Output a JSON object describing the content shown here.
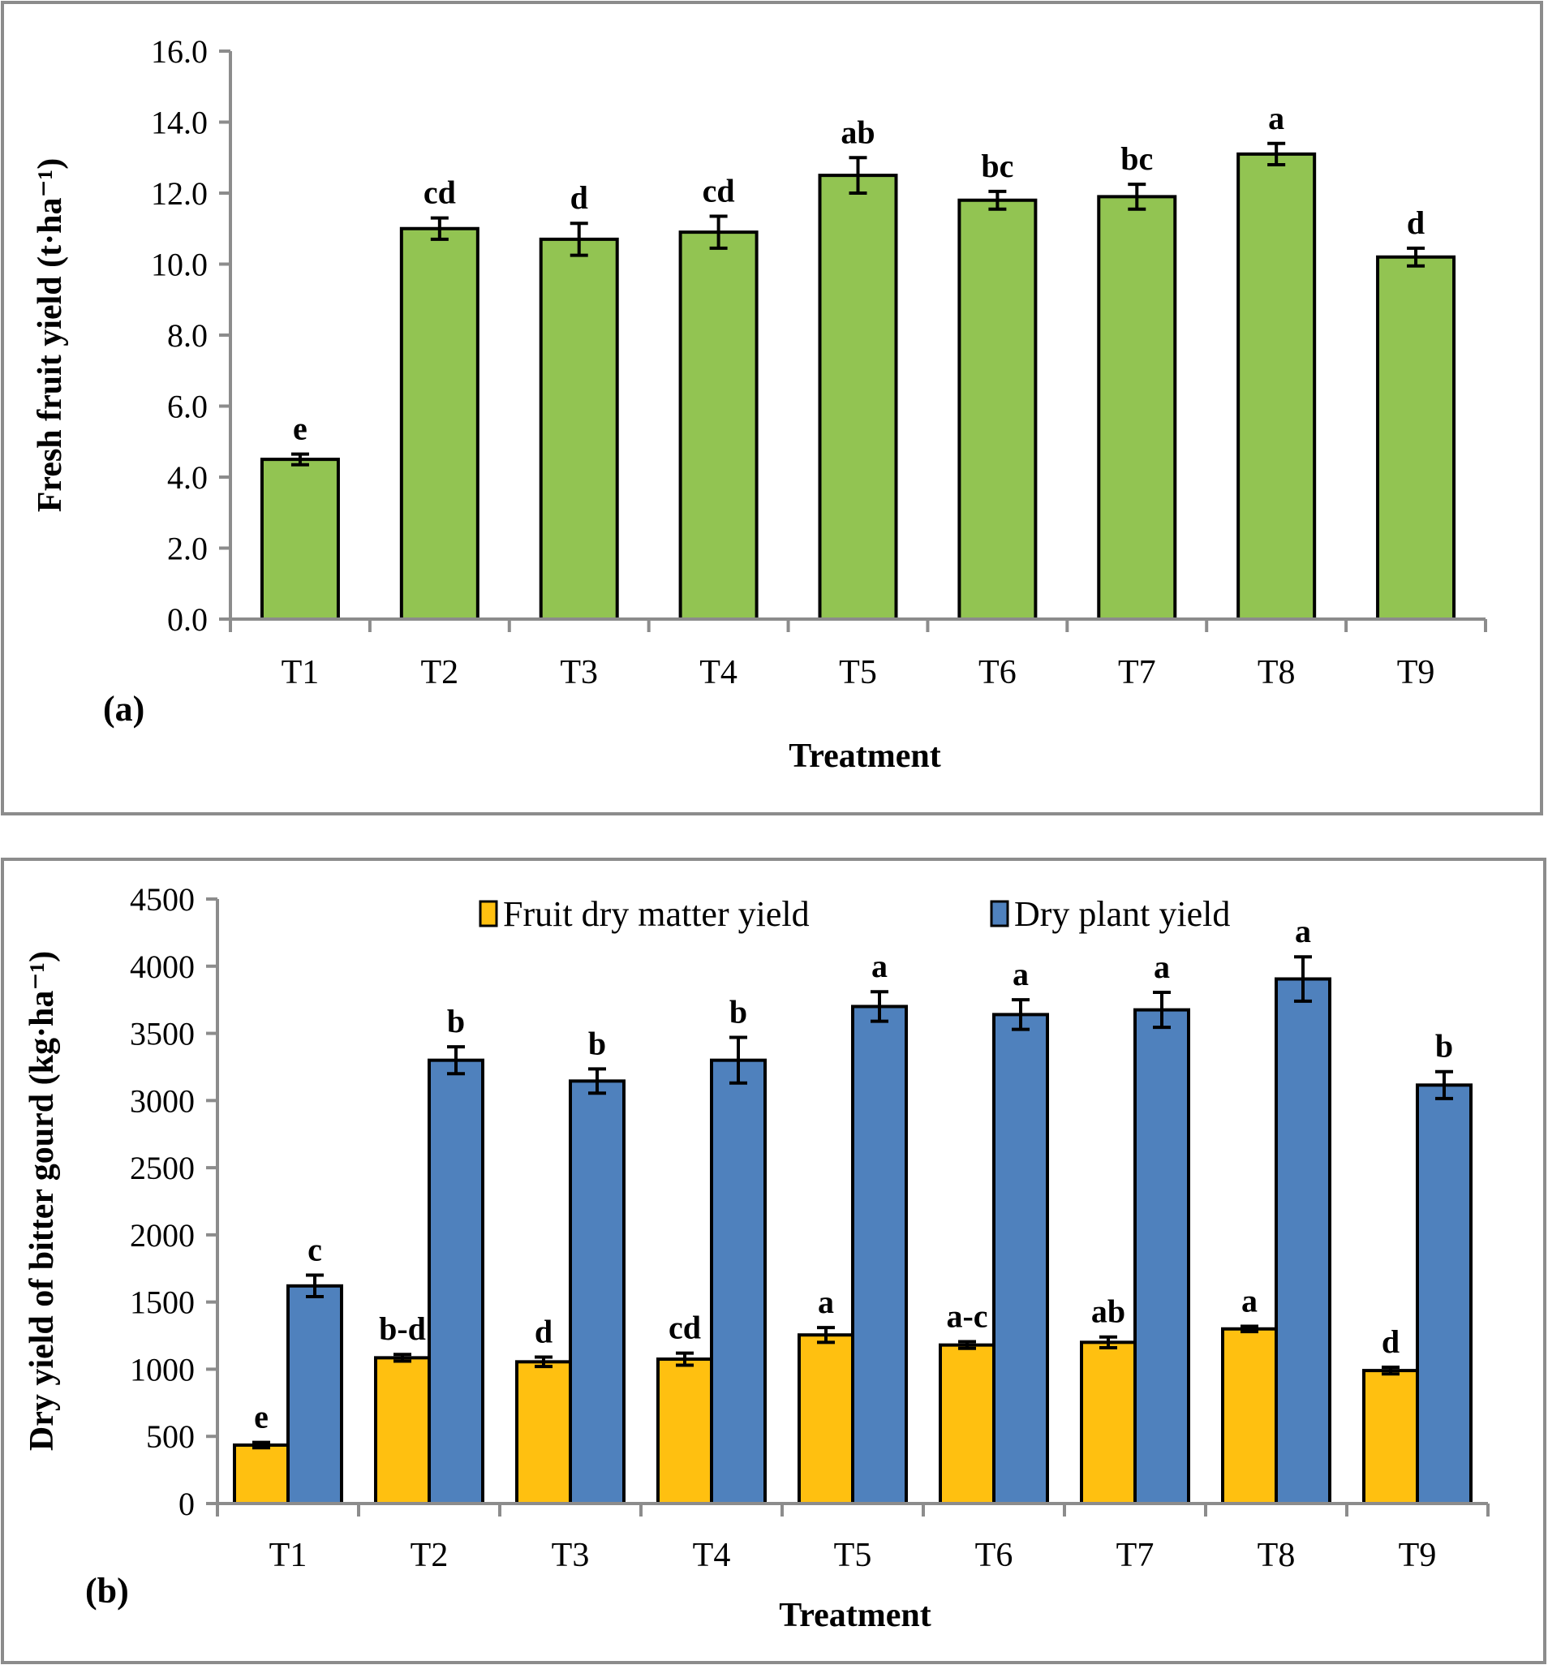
{
  "chart_data": [
    {
      "type": "bar",
      "panel_label": "(a)",
      "title": "",
      "xlabel": "Treatment",
      "ylabel": "Fresh fruit yield (t·ha⁻¹)",
      "ylim": [
        0,
        16
      ],
      "yticks": [
        "0.0",
        "2.0",
        "4.0",
        "6.0",
        "8.0",
        "10.0",
        "12.0",
        "14.0",
        "16.0"
      ],
      "grid": false,
      "categories": [
        "T1",
        "T2",
        "T3",
        "T4",
        "T5",
        "T6",
        "T7",
        "T8",
        "T9"
      ],
      "series": [
        {
          "name": "Fresh fruit yield",
          "color": "#92c452",
          "values": [
            4.5,
            11.0,
            10.7,
            10.9,
            12.5,
            11.8,
            11.9,
            13.1,
            10.2
          ],
          "errors": [
            0.15,
            0.3,
            0.45,
            0.45,
            0.5,
            0.25,
            0.35,
            0.3,
            0.25
          ],
          "significance": [
            "e",
            "cd",
            "d",
            "cd",
            "ab",
            "bc",
            "bc",
            "a",
            "d"
          ]
        }
      ]
    },
    {
      "type": "bar",
      "panel_label": "(b)",
      "title": "",
      "xlabel": "Treatment",
      "ylabel": "Dry yield of bitter gourd (kg·ha⁻¹)",
      "ylim": [
        0,
        4500
      ],
      "yticks": [
        "0",
        "500",
        "1000",
        "1500",
        "2000",
        "2500",
        "3000",
        "3500",
        "4000",
        "4500"
      ],
      "grid": false,
      "legend_position": "top-center",
      "categories": [
        "T1",
        "T2",
        "T3",
        "T4",
        "T5",
        "T6",
        "T7",
        "T8",
        "T9"
      ],
      "series": [
        {
          "name": "Fruit dry matter yield",
          "color": "#ffc010",
          "values": [
            435,
            1085,
            1055,
            1075,
            1255,
            1180,
            1200,
            1300,
            990
          ],
          "errors": [
            20,
            25,
            35,
            45,
            55,
            25,
            40,
            20,
            25
          ],
          "significance": [
            "e",
            "b-d",
            "d",
            "cd",
            "a",
            "a-c",
            "ab",
            "a",
            "d"
          ]
        },
        {
          "name": "Dry plant yield",
          "color": "#4f81bd",
          "values": [
            1620,
            3300,
            3145,
            3300,
            3700,
            3640,
            3675,
            3905,
            3115
          ],
          "errors": [
            80,
            100,
            90,
            170,
            110,
            110,
            130,
            165,
            100
          ],
          "significance": [
            "c",
            "b",
            "b",
            "b",
            "a",
            "a",
            "a",
            "a",
            "b"
          ]
        }
      ]
    }
  ]
}
